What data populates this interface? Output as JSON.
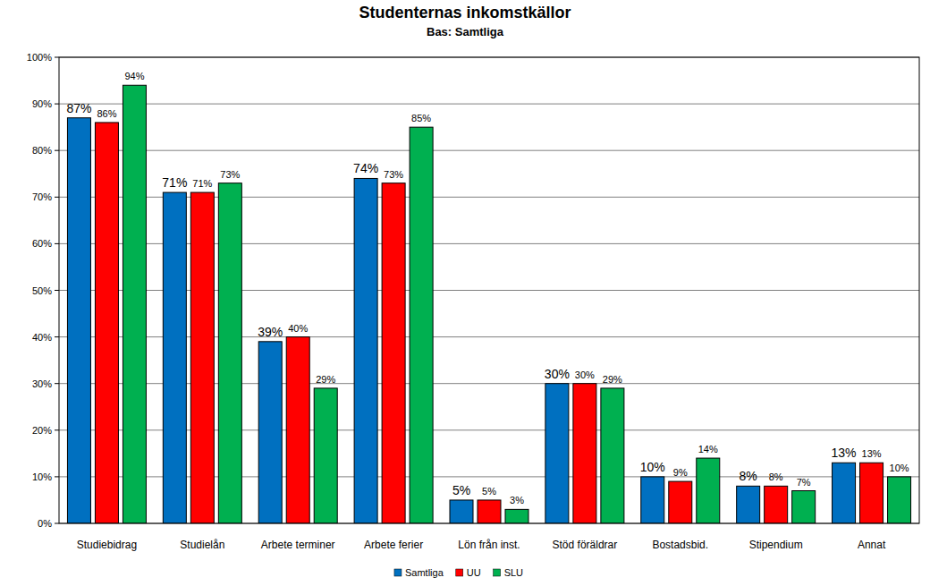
{
  "chart_data": {
    "type": "bar",
    "title": "Studenternas inkomstkällor",
    "subtitle": "Bas: Samtliga",
    "categories": [
      "Studiebidrag",
      "Studielån",
      "Arbete terminer",
      "Arbete ferier",
      "Lön från inst.",
      "Stöd föräldrar",
      "Bostadsbid.",
      "Stipendium",
      "Annat"
    ],
    "series": [
      {
        "name": "Samtliga",
        "color": "#0070C0",
        "values": [
          87,
          71,
          39,
          74,
          5,
          30,
          10,
          8,
          13
        ],
        "value_labels": [
          "87%",
          "71%",
          "39%",
          "74%",
          "5%",
          "30%",
          "10%",
          "8%",
          "13%"
        ]
      },
      {
        "name": "UU",
        "color": "#FF0000",
        "values": [
          86,
          71,
          40,
          73,
          5,
          30,
          9,
          8,
          13
        ],
        "value_labels": [
          "86%",
          "71%",
          "40%",
          "73%",
          "5%",
          "30%",
          "9%",
          "8%",
          "13%"
        ]
      },
      {
        "name": "SLU",
        "color": "#00B050",
        "values": [
          94,
          73,
          29,
          85,
          3,
          29,
          14,
          7,
          10
        ],
        "value_labels": [
          "94%",
          "73%",
          "29%",
          "85%",
          "3%",
          "29%",
          "14%",
          "7%",
          "10%"
        ]
      }
    ],
    "ylim": [
      0,
      100
    ],
    "yticks": [
      {
        "value": 0,
        "label": "0%"
      },
      {
        "value": 10,
        "label": "10%"
      },
      {
        "value": 20,
        "label": "20%"
      },
      {
        "value": 30,
        "label": "30%"
      },
      {
        "value": 40,
        "label": "40%"
      },
      {
        "value": 50,
        "label": "50%"
      },
      {
        "value": 60,
        "label": "60%"
      },
      {
        "value": 70,
        "label": "70%"
      },
      {
        "value": 80,
        "label": "80%"
      },
      {
        "value": 90,
        "label": "90%"
      },
      {
        "value": 100,
        "label": "100%"
      }
    ],
    "grid": true,
    "legend": "bottom",
    "data_labels": true
  }
}
